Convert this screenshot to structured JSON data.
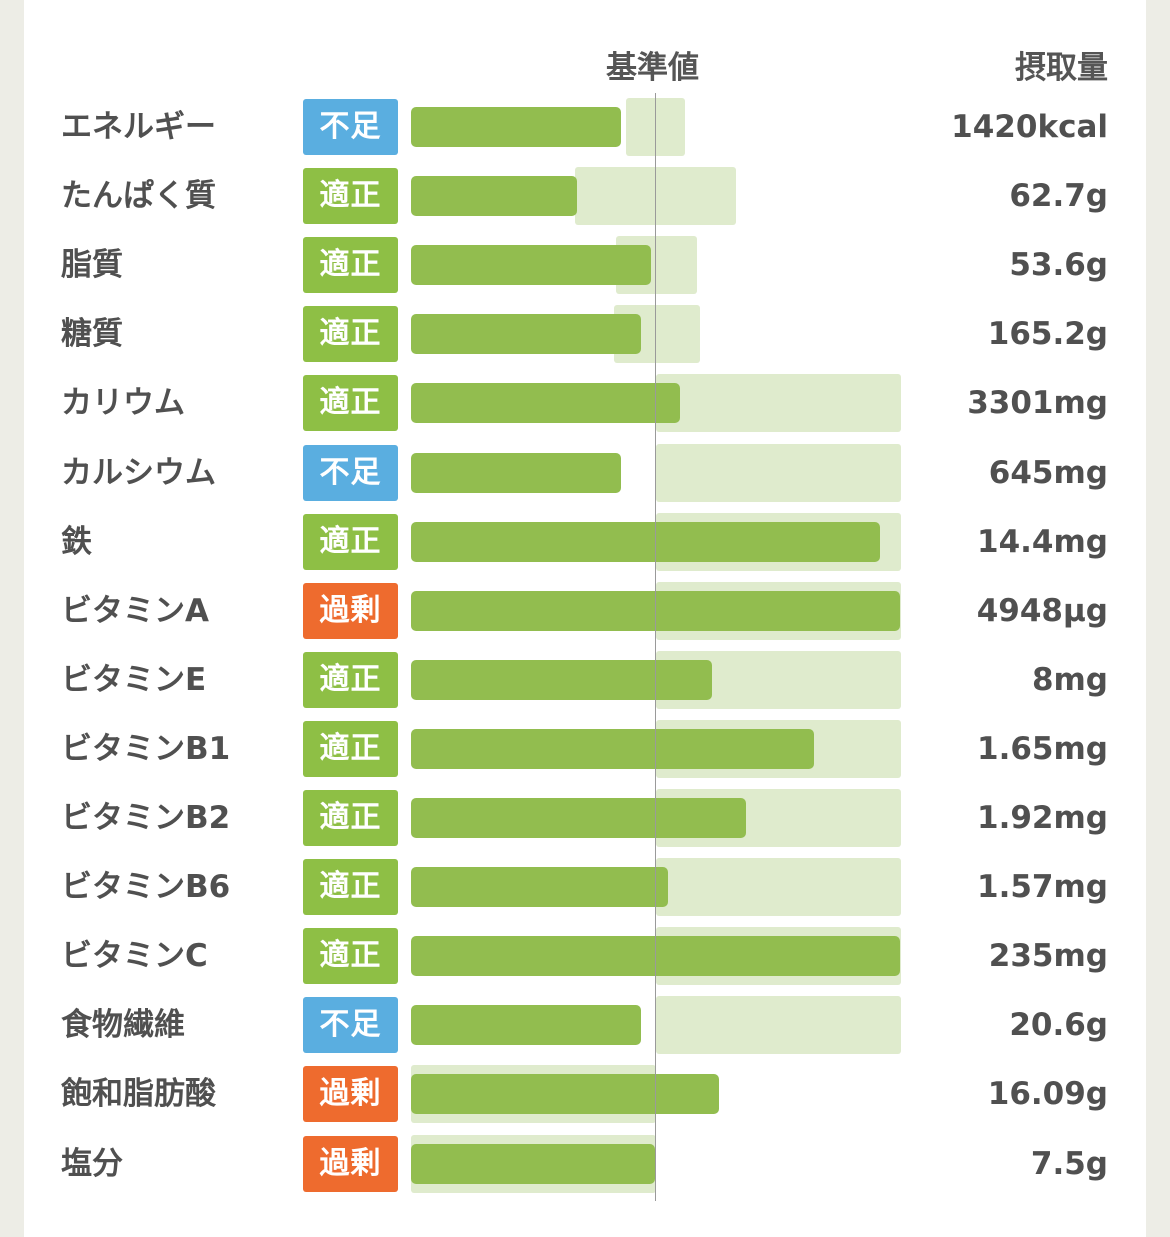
{
  "header": {
    "reference_label": "基準値",
    "intake_label": "摂取量"
  },
  "status_colors": {
    "適正": "#8ebf45",
    "不足": "#5aaee0",
    "過剰": "#ee6b2e"
  },
  "chart_data": {
    "type": "bar",
    "orientation": "horizontal",
    "reference_value_pct": 100,
    "note_units": "bar = intake as % of reference value; range = recommended range as % of reference",
    "rows": [
      {
        "name": "エネルギー",
        "status": "不足",
        "value": "1420kcal",
        "pct": 86,
        "range": [
          88,
          112
        ]
      },
      {
        "name": "たんぱく質",
        "status": "適正",
        "value": "62.7g",
        "pct": 68,
        "range": [
          67,
          133
        ]
      },
      {
        "name": "脂質",
        "status": "適正",
        "value": "53.6g",
        "pct": 98,
        "range": [
          84,
          117
        ]
      },
      {
        "name": "糖質",
        "status": "適正",
        "value": "165.2g",
        "pct": 94,
        "range": [
          83,
          118
        ]
      },
      {
        "name": "カリウム",
        "status": "適正",
        "value": "3301mg",
        "pct": 110,
        "range": [
          100,
          200
        ]
      },
      {
        "name": "カルシウム",
        "status": "不足",
        "value": "645mg",
        "pct": 86,
        "range": [
          100,
          200
        ]
      },
      {
        "name": "鉄",
        "status": "適正",
        "value": "14.4mg",
        "pct": 192,
        "range": [
          100,
          200
        ]
      },
      {
        "name": "ビタミンA",
        "status": "過剰",
        "value": "4948μg",
        "pct": 200,
        "range": [
          100,
          200
        ]
      },
      {
        "name": "ビタミンE",
        "status": "適正",
        "value": "8mg",
        "pct": 123,
        "range": [
          100,
          200
        ]
      },
      {
        "name": "ビタミンB1",
        "status": "適正",
        "value": "1.65mg",
        "pct": 165,
        "range": [
          100,
          200
        ]
      },
      {
        "name": "ビタミンB2",
        "status": "適正",
        "value": "1.92mg",
        "pct": 137,
        "range": [
          100,
          200
        ]
      },
      {
        "name": "ビタミンB6",
        "status": "適正",
        "value": "1.57mg",
        "pct": 105,
        "range": [
          100,
          200
        ]
      },
      {
        "name": "ビタミンC",
        "status": "適正",
        "value": "235mg",
        "pct": 200,
        "range": [
          100,
          200
        ]
      },
      {
        "name": "食物繊維",
        "status": "不足",
        "value": "20.6g",
        "pct": 94,
        "range": [
          100,
          200
        ]
      },
      {
        "name": "飽和脂肪酸",
        "status": "過剰",
        "value": "16.09g",
        "pct": 126,
        "range": [
          0,
          100
        ]
      },
      {
        "name": "塩分",
        "status": "過剰",
        "value": "7.5g",
        "pct": 100,
        "range": [
          0,
          100
        ]
      }
    ]
  }
}
